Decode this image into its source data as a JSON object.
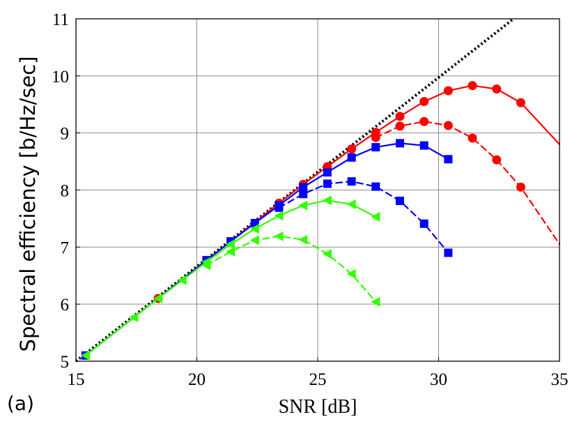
{
  "panel_label": "(a)",
  "chart_data": {
    "type": "line",
    "title": "",
    "xlabel": "SNR [dB]",
    "ylabel": "Spectral efficiency [b/Hz/sec]",
    "xlim": [
      15,
      35
    ],
    "ylim": [
      5,
      11
    ],
    "xticks": [
      "15",
      "20",
      "25",
      "30",
      "35"
    ],
    "yticks": [
      "5",
      "6",
      "7",
      "8",
      "9",
      "10",
      "11"
    ],
    "grid": true,
    "legend": "none",
    "series": [
      {
        "line": "dotted",
        "color": "#000000",
        "marker": "none",
        "x": [
          15,
          33.1
        ],
        "y": [
          5,
          11
        ]
      },
      {
        "line": "solid",
        "color": "#ff0000",
        "marker": "circle",
        "x": [
          18.4,
          23.4,
          24.4,
          25.4,
          26.4,
          27.4,
          28.4,
          29.4,
          30.4,
          31.4,
          32.4,
          33.4,
          35
        ],
        "y": [
          6.1,
          7.77,
          8.1,
          8.41,
          8.72,
          9.01,
          9.29,
          9.55,
          9.74,
          9.83,
          9.77,
          9.53,
          8.8
        ],
        "marked": [
          true,
          true,
          true,
          true,
          true,
          true,
          true,
          true,
          true,
          true,
          true,
          true,
          false
        ]
      },
      {
        "line": "dashed",
        "color": "#ff0000",
        "marker": "circle",
        "x": [
          27.4,
          28.4,
          29.4,
          30.4,
          31.4,
          32.4,
          33.4,
          35
        ],
        "y": [
          8.92,
          9.12,
          9.2,
          9.13,
          8.91,
          8.53,
          8.05,
          7.05
        ],
        "marked": [
          true,
          true,
          true,
          true,
          true,
          true,
          true,
          false
        ]
      },
      {
        "line": "solid",
        "color": "#0000ff",
        "marker": "square",
        "x": [
          15.4,
          20.4,
          21.4,
          22.4,
          23.4,
          24.4,
          25.4,
          26.4,
          27.4,
          28.4,
          29.4,
          30.4
        ],
        "y": [
          5.1,
          6.77,
          7.1,
          7.42,
          7.73,
          8.05,
          8.31,
          8.57,
          8.75,
          8.82,
          8.78,
          8.54
        ]
      },
      {
        "line": "dashed",
        "color": "#0000ff",
        "marker": "square",
        "x": [
          23.4,
          24.4,
          25.4,
          26.4,
          27.4,
          28.4,
          29.4,
          30.4
        ],
        "y": [
          7.69,
          7.93,
          8.11,
          8.15,
          8.06,
          7.81,
          7.41,
          6.9
        ]
      },
      {
        "line": "solid",
        "color": "#33ff00",
        "marker": "triangle-left",
        "x": [
          15.4,
          17.4,
          18.4,
          19.4,
          20.4,
          21.4,
          22.4,
          23.4,
          24.4,
          25.4,
          26.4,
          27.4
        ],
        "y": [
          5.1,
          5.77,
          6.1,
          6.42,
          6.74,
          7.05,
          7.32,
          7.55,
          7.73,
          7.82,
          7.75,
          7.53
        ]
      },
      {
        "line": "dashed",
        "color": "#33ff00",
        "marker": "triangle-left",
        "x": [
          20.4,
          21.4,
          22.4,
          23.4,
          24.4,
          25.4,
          26.4,
          27.4
        ],
        "y": [
          6.68,
          6.92,
          7.12,
          7.19,
          7.13,
          6.88,
          6.53,
          6.04
        ]
      }
    ]
  }
}
